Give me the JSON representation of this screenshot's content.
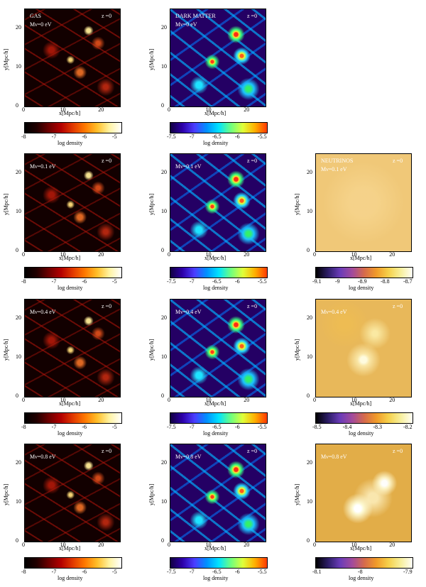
{
  "common": {
    "xlabel": "x[Mpc/h]",
    "ylabel": "y[Mpc/h]",
    "cbar_label": "log density",
    "x_ticks": [
      "0",
      "10",
      "20"
    ],
    "y_ticks": [
      "0",
      "10",
      "20"
    ],
    "redshift": "z =0"
  },
  "rows": [
    {
      "gas": {
        "title": "GAS",
        "mass": "Mν=0 eV",
        "cbar": [
          "-8",
          "-7",
          "-6",
          "-5"
        ]
      },
      "dm": {
        "title": "DARK MATTER",
        "mass": "Mν=0 eV",
        "cbar": [
          "-7.5",
          "-7",
          "-6.5",
          "-6",
          "-5.5"
        ]
      }
    },
    {
      "gas": {
        "mass": "Mν=0.1 eV",
        "cbar": [
          "-8",
          "-7",
          "-6",
          "-5"
        ]
      },
      "dm": {
        "mass": "Mν=0.1 eV",
        "cbar": [
          "-7.5",
          "-7",
          "-6.5",
          "-6",
          "-5.5"
        ]
      },
      "nu": {
        "title": "NEUTRINOS",
        "mass": "Mν=0.1 eV",
        "cbar": [
          "-9.1",
          "-9",
          "-8.9",
          "-8.8",
          "-8.7"
        ]
      }
    },
    {
      "gas": {
        "mass": "Mν=0.4 eV",
        "cbar": [
          "-8",
          "-7",
          "-6",
          "-5"
        ]
      },
      "dm": {
        "mass": "Mν=0.4 eV",
        "cbar": [
          "-7.5",
          "-7",
          "-6.5",
          "-6",
          "-5.5"
        ]
      },
      "nu": {
        "mass": "Mν=0.4 eV",
        "cbar": [
          "-8.5",
          "-8.4",
          "-8.3",
          "-8.2"
        ]
      }
    },
    {
      "gas": {
        "mass": "Mν=0.8 eV",
        "cbar": [
          "-8",
          "-7",
          "-6",
          "-5"
        ]
      },
      "dm": {
        "mass": "Mν=0.8 eV",
        "cbar": [
          "-7.5",
          "-7",
          "-6.5",
          "-6",
          "-5.5"
        ]
      },
      "nu": {
        "mass": "Mν=0.8 eV",
        "cbar": [
          "-8.1",
          "-8",
          "-7.9"
        ]
      }
    }
  ]
}
